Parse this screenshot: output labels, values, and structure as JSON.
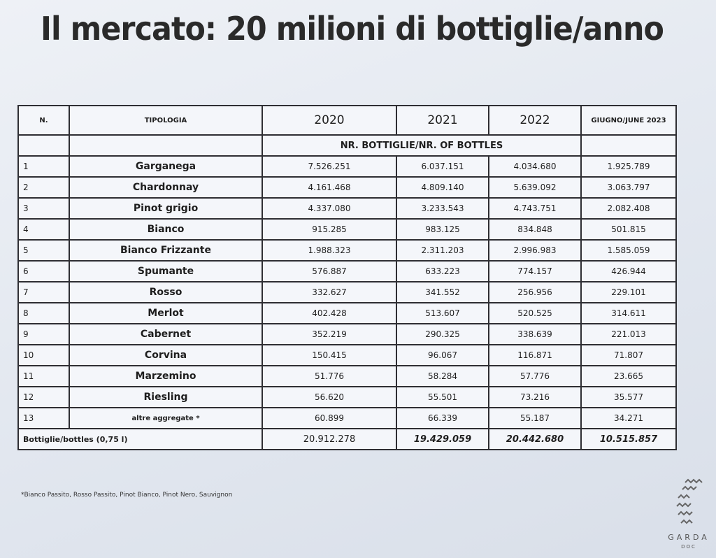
{
  "title": "Il mercato: 20 milioni di bottiglie/anno",
  "table": {
    "header": [
      "N.",
      "TIPOLOGIA",
      "2020",
      "2021",
      "2022",
      "GIUGNO/JUNE 2023"
    ],
    "subheader": "NR. BOTTIGLIE/NR. OF BOTTLES",
    "rows": [
      [
        "1",
        "Garganega",
        "7.526.251",
        "6.037.151",
        "4.034.680",
        "1.925.789"
      ],
      [
        "2",
        "Chardonnay",
        "4.161.468",
        "4.809.140",
        "5.639.092",
        "3.063.797"
      ],
      [
        "3",
        "Pinot grigio",
        "4.337.080",
        "3.233.543",
        "4.743.751",
        "2.082.408"
      ],
      [
        "4",
        "Bianco",
        "915.285",
        "983.125",
        "834.848",
        "501.815"
      ],
      [
        "5",
        "Bianco Frizzante",
        "1.988.323",
        "2.311.203",
        "2.996.983",
        "1.585.059"
      ],
      [
        "6",
        "Spumante",
        "576.887",
        "633.223",
        "774.157",
        "426.944"
      ],
      [
        "7",
        "Rosso",
        "332.627",
        "341.552",
        "256.956",
        "229.101"
      ],
      [
        "8",
        "Merlot",
        "402.428",
        "513.607",
        "520.525",
        "314.611"
      ],
      [
        "9",
        "Cabernet",
        "352.219",
        "290.325",
        "338.639",
        "221.013"
      ],
      [
        "10",
        "Corvina",
        "150.415",
        "96.067",
        "116.871",
        "71.807"
      ],
      [
        "11",
        "Marzemino",
        "51.776",
        "58.284",
        "57.776",
        "23.665"
      ],
      [
        "12",
        "Riesling",
        "56.620",
        "55.501",
        "73.216",
        "35.577"
      ],
      [
        "13",
        "altre aggregate *",
        "60.899",
        "66.339",
        "55.187",
        "34.271"
      ]
    ],
    "total": [
      "Bottiglie/bottles (0,75 l)",
      "20.912.278",
      "19.429.059",
      "20.442.680",
      "10.515.857"
    ]
  },
  "footnote": "*Bianco Passito, Rosso Passito, Pinot Bianco, Pinot Nero, Sauvignon",
  "logo": {
    "name": "GARDA",
    "sub": "DOC"
  }
}
